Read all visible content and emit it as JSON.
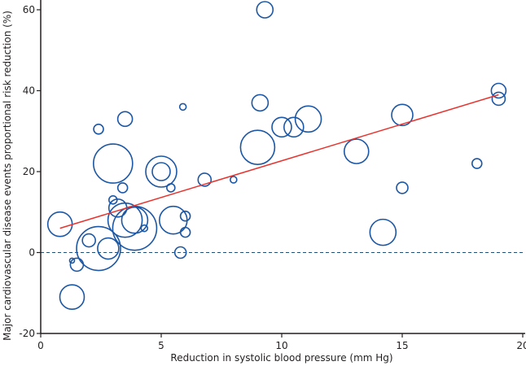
{
  "chart_data": {
    "type": "scatter",
    "subtype": "bubble",
    "title": "",
    "xlabel": "Reduction in systolic blood pressure (mm Hg)",
    "ylabel": "Major cardiovascular disease events proportional risk reduction (%)",
    "xlim": [
      0,
      20
    ],
    "ylim": [
      -20,
      62
    ],
    "xticks": [
      0,
      5,
      10,
      15,
      20
    ],
    "yticks": [
      -20,
      0,
      20,
      40,
      60
    ],
    "xtick_labels": [
      "0",
      "5",
      "10",
      "15",
      "20"
    ],
    "ytick_labels": [
      "-20",
      "0",
      "20",
      "40",
      "60"
    ],
    "grid": false,
    "legend": "none",
    "reference_line": {
      "y": 0,
      "style": "dashed",
      "color": "#1f4e79"
    },
    "regression_line": {
      "x": [
        0.8,
        19.0
      ],
      "y": [
        6.0,
        39.0
      ],
      "color": "#e8322d"
    },
    "bubble_color": "#1c57a5",
    "points": [
      {
        "x": 0.8,
        "y": 7,
        "size": 15
      },
      {
        "x": 1.3,
        "y": -11,
        "size": 15
      },
      {
        "x": 1.5,
        "y": -3,
        "size": 8
      },
      {
        "x": 1.3,
        "y": -2,
        "size": 3
      },
      {
        "x": 2.0,
        "y": 3,
        "size": 8
      },
      {
        "x": 2.4,
        "y": 1,
        "size": 27
      },
      {
        "x": 2.4,
        "y": 30.5,
        "size": 6
      },
      {
        "x": 2.8,
        "y": 1,
        "size": 13
      },
      {
        "x": 3.0,
        "y": 22,
        "size": 24
      },
      {
        "x": 3.4,
        "y": 16,
        "size": 6
      },
      {
        "x": 3.5,
        "y": 33,
        "size": 9
      },
      {
        "x": 3.0,
        "y": 13,
        "size": 5
      },
      {
        "x": 3.2,
        "y": 11,
        "size": 11
      },
      {
        "x": 3.5,
        "y": 8,
        "size": 21
      },
      {
        "x": 3.9,
        "y": 6,
        "size": 27
      },
      {
        "x": 3.9,
        "y": 8,
        "size": 16
      },
      {
        "x": 4.3,
        "y": 6,
        "size": 4
      },
      {
        "x": 5.0,
        "y": 20,
        "size": 19
      },
      {
        "x": 5.0,
        "y": 20,
        "size": 11
      },
      {
        "x": 5.4,
        "y": 16,
        "size": 5
      },
      {
        "x": 5.5,
        "y": 8,
        "size": 17
      },
      {
        "x": 6.0,
        "y": 9,
        "size": 6
      },
      {
        "x": 6.0,
        "y": 5,
        "size": 6
      },
      {
        "x": 5.8,
        "y": 0,
        "size": 7
      },
      {
        "x": 5.9,
        "y": 36,
        "size": 4
      },
      {
        "x": 6.8,
        "y": 18,
        "size": 8
      },
      {
        "x": 8.0,
        "y": 18,
        "size": 4
      },
      {
        "x": 9.0,
        "y": 26,
        "size": 21
      },
      {
        "x": 9.1,
        "y": 37,
        "size": 10
      },
      {
        "x": 9.3,
        "y": 60,
        "size": 10
      },
      {
        "x": 10.0,
        "y": 31,
        "size": 12
      },
      {
        "x": 10.5,
        "y": 31,
        "size": 12
      },
      {
        "x": 11.1,
        "y": 33,
        "size": 16
      },
      {
        "x": 13.1,
        "y": 25,
        "size": 15
      },
      {
        "x": 14.2,
        "y": 5,
        "size": 16
      },
      {
        "x": 15.0,
        "y": 34,
        "size": 13
      },
      {
        "x": 15.0,
        "y": 16,
        "size": 7
      },
      {
        "x": 18.1,
        "y": 22,
        "size": 6
      },
      {
        "x": 19.0,
        "y": 38,
        "size": 8
      },
      {
        "x": 19.0,
        "y": 40,
        "size": 9
      }
    ]
  }
}
